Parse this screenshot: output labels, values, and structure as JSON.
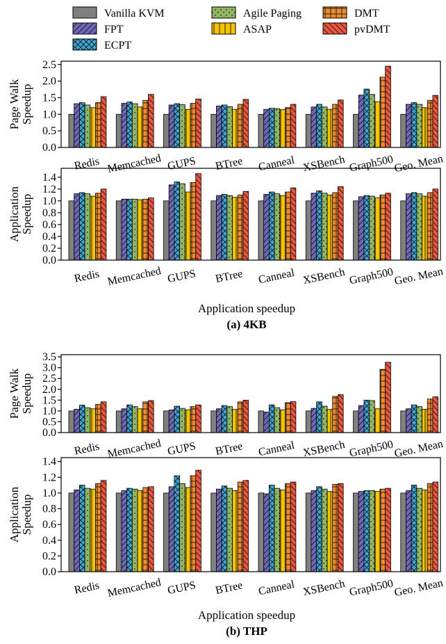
{
  "legend": [
    {
      "name": "Vanilla KVM",
      "color": "#808080",
      "pattern": "solid"
    },
    {
      "name": "FPT",
      "color": "#7066bc",
      "pattern": "diag-right"
    },
    {
      "name": "ECPT",
      "color": "#3aa8d8",
      "pattern": "cross"
    },
    {
      "name": "Agile Paging",
      "color": "#8fb565",
      "pattern": "dots"
    },
    {
      "name": "ASAP",
      "color": "#f5c400",
      "pattern": "vertical"
    },
    {
      "name": "DMT",
      "color": "#f08a2c",
      "pattern": "grid"
    },
    {
      "name": "pvDMT",
      "color": "#f0553c",
      "pattern": "diag-left"
    }
  ],
  "sections": [
    {
      "xlabel": "Application speedup",
      "caption": "(a) 4KB"
    },
    {
      "xlabel": "Application speedup",
      "caption": "(b) THP"
    }
  ],
  "chart_data": [
    {
      "type": "bar",
      "title": "",
      "xlabel": "",
      "ylabel": "Page Walk Speedup",
      "ylim": [
        0,
        2.6
      ],
      "yticks": [
        "0.0",
        "0.5",
        "1.0",
        "1.5",
        "2.0",
        "2.5"
      ],
      "ytick_values": [
        0,
        0.5,
        1,
        1.5,
        2,
        2.5
      ],
      "categories": [
        "Redis",
        "Memcached",
        "GUPS",
        "BTree",
        "Canneal",
        "XSBench",
        "Graph500",
        "Geo. Mean"
      ],
      "series": [
        {
          "name": "Vanilla KVM",
          "values": [
            1.0,
            1.0,
            1.0,
            1.0,
            1.0,
            1.0,
            1.0,
            1.0
          ]
        },
        {
          "name": "FPT",
          "values": [
            1.32,
            1.33,
            1.28,
            1.25,
            1.15,
            1.22,
            1.58,
            1.3
          ]
        },
        {
          "name": "ECPT",
          "values": [
            1.35,
            1.37,
            1.32,
            1.28,
            1.18,
            1.3,
            1.76,
            1.35
          ]
        },
        {
          "name": "Agile Paging",
          "values": [
            1.28,
            1.32,
            1.29,
            1.23,
            1.17,
            1.22,
            1.6,
            1.3
          ]
        },
        {
          "name": "ASAP",
          "values": [
            1.2,
            1.22,
            1.15,
            1.15,
            1.14,
            1.15,
            1.38,
            1.2
          ]
        },
        {
          "name": "DMT",
          "values": [
            1.35,
            1.42,
            1.33,
            1.3,
            1.2,
            1.3,
            2.12,
            1.42
          ]
        },
        {
          "name": "pvDMT",
          "values": [
            1.53,
            1.6,
            1.46,
            1.45,
            1.3,
            1.43,
            2.45,
            1.57
          ]
        }
      ]
    },
    {
      "type": "bar",
      "title": "",
      "xlabel": "",
      "ylabel": "Application Speedup",
      "ylim": [
        0,
        1.55
      ],
      "yticks": [
        "0.0",
        "0.2",
        "0.4",
        "0.6",
        "0.8",
        "1.0",
        "1.2",
        "1.4"
      ],
      "ytick_values": [
        0,
        0.2,
        0.4,
        0.6,
        0.8,
        1.0,
        1.2,
        1.4
      ],
      "categories": [
        "Redis",
        "Memcached",
        "GUPS",
        "BTree",
        "Canneal",
        "XSBench",
        "Graph500",
        "Geo. Mean"
      ],
      "series": [
        {
          "name": "Vanilla KVM",
          "values": [
            1.0,
            1.0,
            1.0,
            1.0,
            1.0,
            1.0,
            1.0,
            1.0
          ]
        },
        {
          "name": "FPT",
          "values": [
            1.12,
            1.03,
            1.27,
            1.09,
            1.11,
            1.13,
            1.07,
            1.12
          ]
        },
        {
          "name": "ECPT",
          "values": [
            1.14,
            1.03,
            1.32,
            1.11,
            1.15,
            1.17,
            1.09,
            1.14
          ]
        },
        {
          "name": "Agile Paging",
          "values": [
            1.12,
            1.03,
            1.29,
            1.09,
            1.12,
            1.13,
            1.08,
            1.12
          ]
        },
        {
          "name": "ASAP",
          "values": [
            1.08,
            1.02,
            1.15,
            1.06,
            1.09,
            1.1,
            1.05,
            1.08
          ]
        },
        {
          "name": "DMT",
          "values": [
            1.13,
            1.03,
            1.31,
            1.1,
            1.15,
            1.14,
            1.1,
            1.14
          ]
        },
        {
          "name": "pvDMT",
          "values": [
            1.2,
            1.05,
            1.46,
            1.16,
            1.22,
            1.24,
            1.13,
            1.2
          ]
        }
      ]
    },
    {
      "type": "bar",
      "title": "",
      "xlabel": "",
      "ylabel": "Page Walk Speedup",
      "ylim": [
        0,
        3.6
      ],
      "yticks": [
        "0.0",
        "0.5",
        "1.0",
        "1.5",
        "2.0",
        "2.5",
        "3.0",
        "3.5"
      ],
      "ytick_values": [
        0,
        0.5,
        1,
        1.5,
        2,
        2.5,
        3,
        3.5
      ],
      "categories": [
        "Redis",
        "Memcached",
        "GUPS",
        "BTree",
        "Canneal",
        "XSBench",
        "Graph500",
        "Geo. Mean"
      ],
      "series": [
        {
          "name": "Vanilla KVM",
          "values": [
            1.0,
            1.0,
            1.0,
            1.0,
            1.0,
            1.0,
            1.0,
            1.0
          ]
        },
        {
          "name": "FPT",
          "values": [
            1.08,
            1.1,
            1.05,
            1.1,
            0.95,
            1.12,
            1.25,
            1.1
          ]
        },
        {
          "name": "ECPT",
          "values": [
            1.27,
            1.28,
            1.22,
            1.25,
            1.28,
            1.42,
            1.5,
            1.28
          ]
        },
        {
          "name": "Agile Paging",
          "values": [
            1.15,
            1.2,
            1.12,
            1.2,
            1.15,
            1.22,
            1.48,
            1.2
          ]
        },
        {
          "name": "ASAP",
          "values": [
            1.1,
            1.1,
            1.05,
            1.07,
            1.05,
            1.07,
            1.1,
            1.08
          ]
        },
        {
          "name": "DMT",
          "values": [
            1.3,
            1.42,
            1.2,
            1.42,
            1.38,
            1.67,
            2.92,
            1.55
          ]
        },
        {
          "name": "pvDMT",
          "values": [
            1.42,
            1.48,
            1.28,
            1.5,
            1.43,
            1.75,
            3.25,
            1.65
          ]
        }
      ]
    },
    {
      "type": "bar",
      "title": "",
      "xlabel": "",
      "ylabel": "Application Speedup",
      "ylim": [
        0,
        1.45
      ],
      "yticks": [
        "0.0",
        "0.2",
        "0.4",
        "0.6",
        "0.8",
        "1.0",
        "1.2",
        "1.4"
      ],
      "ytick_values": [
        0,
        0.2,
        0.4,
        0.6,
        0.8,
        1.0,
        1.2,
        1.4
      ],
      "categories": [
        "Redis",
        "Memcached",
        "GUPS",
        "BTree",
        "Canneal",
        "XSBench",
        "Graph500",
        "Geo. Mean"
      ],
      "series": [
        {
          "name": "Vanilla KVM",
          "values": [
            1.0,
            1.0,
            1.0,
            1.0,
            1.0,
            1.0,
            1.0,
            1.0
          ]
        },
        {
          "name": "FPT",
          "values": [
            1.04,
            1.03,
            1.08,
            1.05,
            0.99,
            1.03,
            1.02,
            1.03
          ]
        },
        {
          "name": "ECPT",
          "values": [
            1.1,
            1.06,
            1.22,
            1.09,
            1.1,
            1.08,
            1.03,
            1.1
          ]
        },
        {
          "name": "Agile Paging",
          "values": [
            1.06,
            1.05,
            1.12,
            1.06,
            1.06,
            1.05,
            1.03,
            1.06
          ]
        },
        {
          "name": "ASAP",
          "values": [
            1.05,
            1.03,
            1.07,
            1.03,
            1.04,
            1.02,
            1.02,
            1.04
          ]
        },
        {
          "name": "DMT",
          "values": [
            1.12,
            1.07,
            1.22,
            1.14,
            1.12,
            1.11,
            1.05,
            1.12
          ]
        },
        {
          "name": "pvDMT",
          "values": [
            1.16,
            1.08,
            1.29,
            1.16,
            1.14,
            1.12,
            1.06,
            1.14
          ]
        }
      ]
    }
  ]
}
